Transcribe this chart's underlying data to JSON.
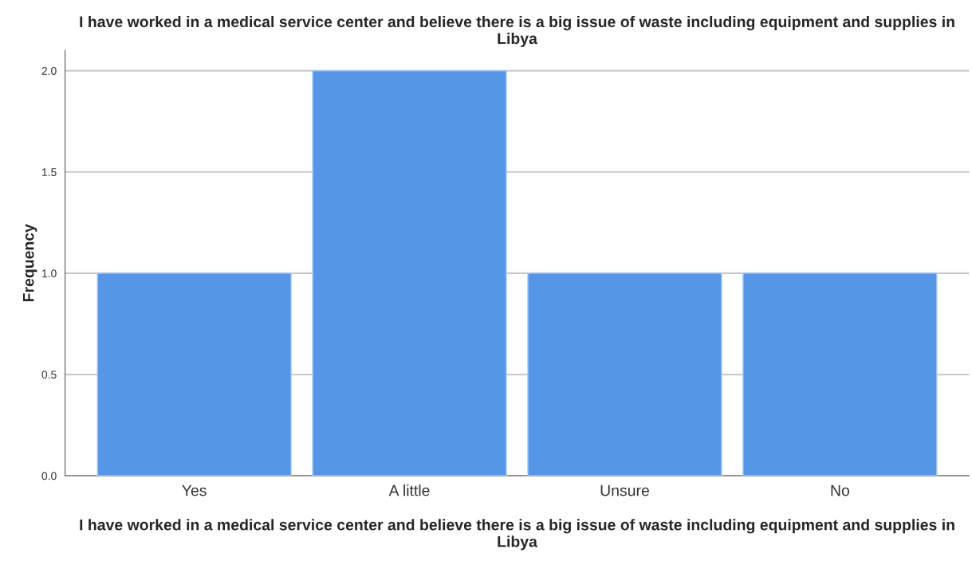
{
  "chart_data": {
    "type": "bar",
    "title": "I have worked in a medical service center and believe there is a big issue of waste including equipment and supplies in Libya",
    "xlabel": "I have worked in a medical service center and believe there is a big issue of waste including equipment and supplies in Libya",
    "ylabel": "Frequency",
    "categories": [
      "Yes",
      "A little",
      "Unsure",
      "No"
    ],
    "values": [
      1,
      2,
      1,
      1
    ],
    "color": "#5596e6",
    "ylim": [
      0,
      2.1
    ],
    "yticks": [
      {
        "value": 0,
        "label": "0.0"
      },
      {
        "value": 0.5,
        "label": "0.5"
      },
      {
        "value": 1,
        "label": "1.0"
      },
      {
        "value": 1.5,
        "label": "1.5"
      },
      {
        "value": 2,
        "label": "2.0"
      }
    ],
    "grid": "y"
  }
}
